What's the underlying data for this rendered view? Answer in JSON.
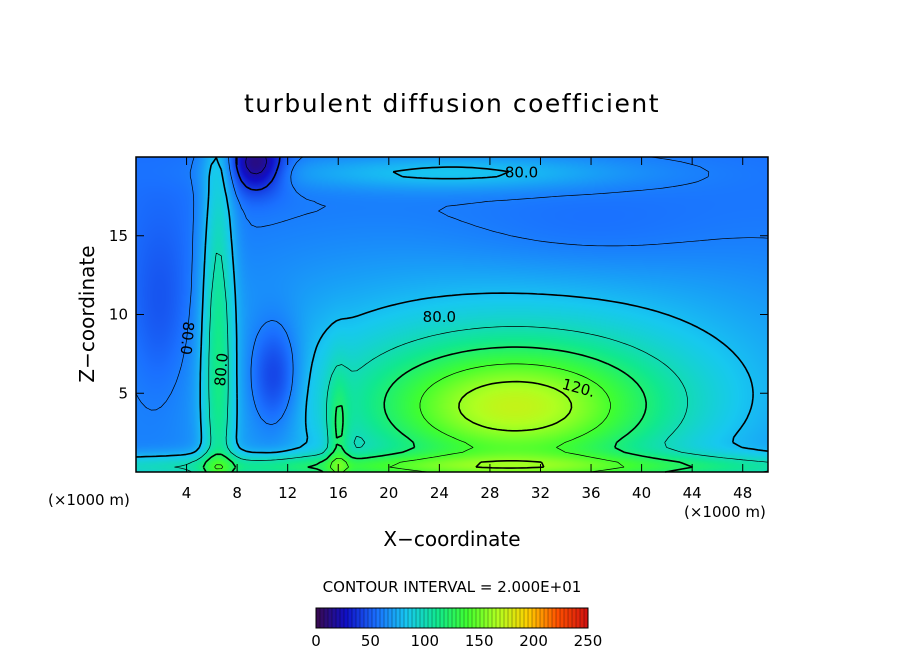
{
  "chart_data": {
    "type": "heatmap",
    "title": "turbulent diffusion coefficient",
    "xlabel": "X−coordinate",
    "ylabel": "Z−coordinate",
    "x_unit_left": "(×1000 m)",
    "x_unit_right": "(×1000 m)",
    "xlim": [
      0,
      50
    ],
    "ylim": [
      0,
      20
    ],
    "x_ticks": [
      4,
      8,
      12,
      16,
      20,
      24,
      28,
      32,
      36,
      40,
      44,
      48
    ],
    "y_ticks": [
      5,
      10,
      15
    ],
    "grid": false,
    "contour_interval_text": "CONTOUR INTERVAL = 2.000E+01",
    "contour_labels": [
      {
        "text": "80.0",
        "x": 30.5,
        "z": 19.0,
        "rotate": 0
      },
      {
        "text": "80.0",
        "x": 24.0,
        "z": 9.8,
        "rotate": 0
      },
      {
        "text": "120.",
        "x": 35.0,
        "z": 5.3,
        "rotate": 15
      },
      {
        "text": "80.0",
        "x": 4.0,
        "z": 8.5,
        "rotate": 95
      },
      {
        "text": "80.0",
        "x": 6.8,
        "z": 6.5,
        "rotate": -85
      }
    ],
    "colorbar": {
      "min": 0,
      "max": 250,
      "ticks": [
        0,
        50,
        100,
        150,
        200,
        250
      ],
      "colors": [
        "#3a0a4e",
        "#1010c8",
        "#1a70ff",
        "#17c8f0",
        "#10e890",
        "#40ff30",
        "#b0ff20",
        "#ffd000",
        "#ff5000",
        "#d01010"
      ]
    },
    "field": {
      "background_value": 55,
      "features": [
        {
          "x": 30,
          "z": 4,
          "sx": 8,
          "sz": 2.8,
          "amp": 85
        },
        {
          "x": 30,
          "z": 6,
          "sx": 18,
          "sz": 6,
          "amp": 35
        },
        {
          "x": 11,
          "z": 6,
          "sx": 1.5,
          "sz": 2.5,
          "amp": -35
        },
        {
          "x": 9.5,
          "z": 19.5,
          "sx": 1.5,
          "sz": 1.2,
          "amp": -50
        },
        {
          "x": 6.5,
          "z": 8,
          "sx": 0.9,
          "sz": 12,
          "amp": 45
        },
        {
          "x": 2,
          "z": 10,
          "sx": 1.8,
          "sz": 4,
          "amp": -15
        },
        {
          "x": 25,
          "z": 19,
          "sx": 10,
          "sz": 0.8,
          "amp": 25
        },
        {
          "x": 25,
          "z": 0.3,
          "sx": 30,
          "sz": 0.6,
          "amp": 50
        },
        {
          "x": 16,
          "z": 2,
          "sx": 0.6,
          "sz": 3,
          "amp": 30
        },
        {
          "x": 35,
          "z": 15,
          "sx": 8,
          "sz": 2,
          "amp": -8
        }
      ]
    }
  }
}
